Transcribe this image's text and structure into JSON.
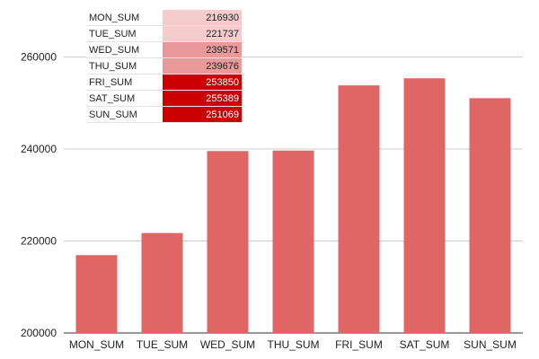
{
  "chart_data": {
    "type": "bar",
    "categories": [
      "MON_SUM",
      "TUE_SUM",
      "WED_SUM",
      "THU_SUM",
      "FRI_SUM",
      "SAT_SUM",
      "SUN_SUM"
    ],
    "values": [
      216930,
      221737,
      239571,
      239676,
      253850,
      255389,
      251069
    ],
    "yticks": [
      "200000",
      "220000",
      "240000",
      "260000"
    ],
    "ylim": [
      200000,
      265000
    ],
    "grid": true,
    "bar_color": "#e06666",
    "title": "",
    "xlabel": "",
    "ylabel": "",
    "table": {
      "rows": [
        {
          "name": "MON_SUM",
          "value": "216930",
          "color": "#f4cccc"
        },
        {
          "name": "TUE_SUM",
          "value": "221737",
          "color": "#f4cccc"
        },
        {
          "name": "WED_SUM",
          "value": "239571",
          "color": "#ea9999"
        },
        {
          "name": "THU_SUM",
          "value": "239676",
          "color": "#ea9999"
        },
        {
          "name": "FRI_SUM",
          "value": "253850",
          "color": "#cc0000"
        },
        {
          "name": "SAT_SUM",
          "value": "255389",
          "color": "#cc0000"
        },
        {
          "name": "SUN_SUM",
          "value": "251069",
          "color": "#cc0000"
        }
      ]
    }
  }
}
